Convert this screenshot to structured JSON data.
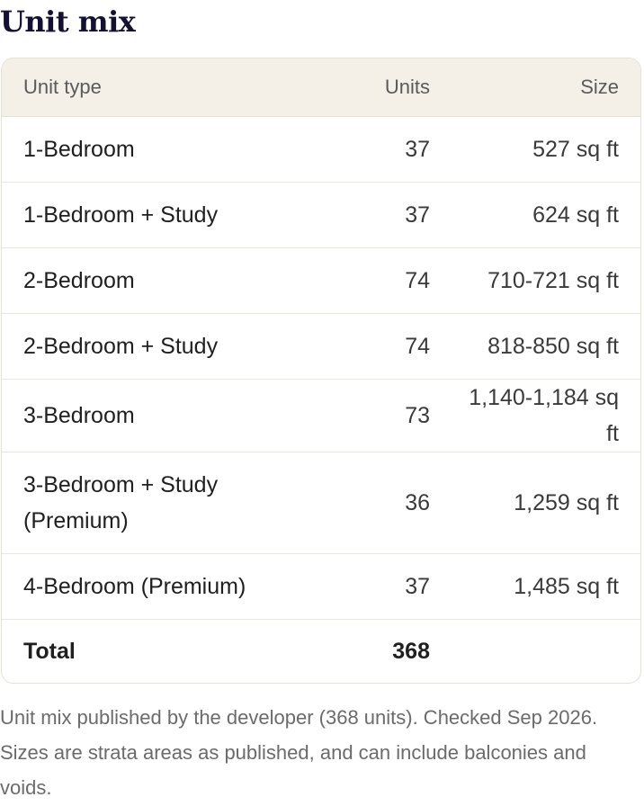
{
  "title": "Unit mix",
  "table": {
    "headers": {
      "unit_type": "Unit type",
      "units": "Units",
      "size": "Size"
    },
    "rows": [
      {
        "unit_type": "1-Bedroom",
        "units": "37",
        "size": "527 sq ft"
      },
      {
        "unit_type": "1-Bedroom + Study",
        "units": "37",
        "size": "624 sq ft"
      },
      {
        "unit_type": "2-Bedroom",
        "units": "74",
        "size": "710-721 sq ft"
      },
      {
        "unit_type": "2-Bedroom + Study",
        "units": "74",
        "size": "818-850 sq ft"
      },
      {
        "unit_type": "3-Bedroom",
        "units": "73",
        "size": "1,140-1,184 sq ft"
      },
      {
        "unit_type": "3-Bedroom + Study (Premium)",
        "units": "36",
        "size": "1,259 sq ft"
      },
      {
        "unit_type": "4-Bedroom (Premium)",
        "units": "37",
        "size": "1,485 sq ft"
      }
    ],
    "total": {
      "label": "Total",
      "units": "368"
    }
  },
  "footnote": "Unit mix published by the developer (368 units). Checked Sep 2026. Sizes are strata areas as published, and can include balconies and voids."
}
